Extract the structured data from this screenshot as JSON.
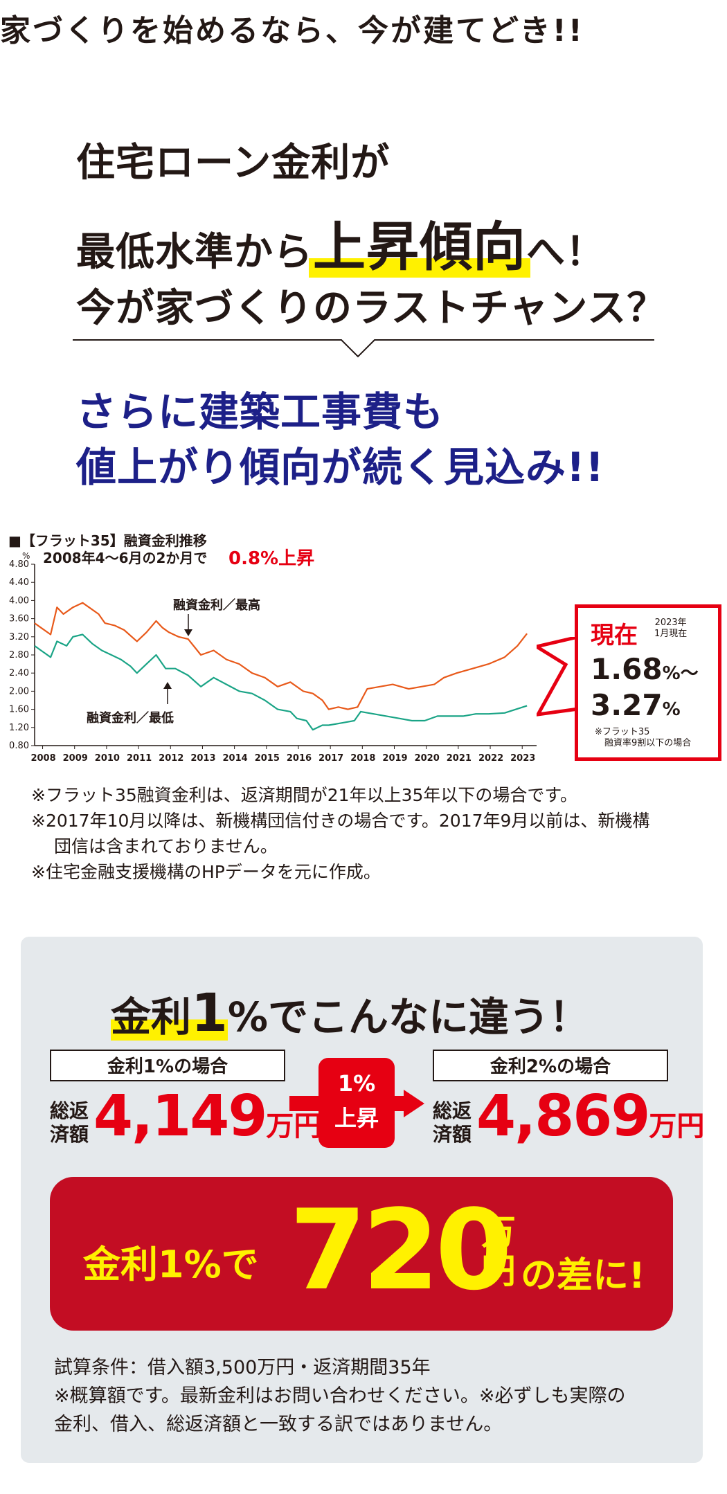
{
  "headline": "家づくりを始めるなら、今が建てどき!!",
  "hero": {
    "line1": "住宅ローン金利が",
    "line2_pre": "最低水準から",
    "line2_highlight": "上昇傾向",
    "line2_post": "へ！",
    "line3": "今が家づくりのラストチャンス？"
  },
  "sub": {
    "line1": "さらに建築工事費も",
    "line2": "値上がり傾向が続く見込み!!"
  },
  "chart_data": {
    "type": "line",
    "title": "■【フラット35】融資金利推移",
    "ylabel": "%",
    "ylim": [
      0.8,
      4.8
    ],
    "yticks": [
      "4.80",
      "4.40",
      "4.00",
      "3.60",
      "3.20",
      "2.80",
      "2.40",
      "2.00",
      "1.60",
      "1.20",
      "0.80"
    ],
    "xticks": [
      "2008",
      "2009",
      "2010",
      "2011",
      "2012",
      "2013",
      "2014",
      "2015",
      "2016",
      "2017",
      "2018",
      "2019",
      "2020",
      "2021",
      "2022",
      "2023"
    ],
    "xlim": [
      2007.8,
      2023.5
    ],
    "grid": false,
    "annotation_note": "2008年4〜6月の2か月で",
    "annotation_rise": "0.8%上昇",
    "label_high": "融資金利／最高",
    "label_low": "融資金利／最低",
    "series": [
      {
        "color": "#e8591a",
        "points": [
          [
            2007.8,
            3.5
          ],
          [
            2008.0,
            3.4
          ],
          [
            2008.3,
            3.25
          ],
          [
            2008.5,
            3.85
          ],
          [
            2008.7,
            3.7
          ],
          [
            2009.0,
            3.85
          ],
          [
            2009.3,
            3.95
          ],
          [
            2009.5,
            3.85
          ],
          [
            2009.8,
            3.7
          ],
          [
            2010.0,
            3.5
          ],
          [
            2010.3,
            3.45
          ],
          [
            2010.6,
            3.35
          ],
          [
            2011.0,
            3.1
          ],
          [
            2011.3,
            3.3
          ],
          [
            2011.6,
            3.55
          ],
          [
            2011.8,
            3.4
          ],
          [
            2012.0,
            3.3
          ],
          [
            2012.3,
            3.2
          ],
          [
            2012.6,
            3.15
          ],
          [
            2013.0,
            2.8
          ],
          [
            2013.4,
            2.9
          ],
          [
            2013.8,
            2.7
          ],
          [
            2014.2,
            2.6
          ],
          [
            2014.6,
            2.4
          ],
          [
            2015.0,
            2.3
          ],
          [
            2015.4,
            2.1
          ],
          [
            2015.8,
            2.2
          ],
          [
            2016.2,
            2.0
          ],
          [
            2016.5,
            1.95
          ],
          [
            2016.8,
            1.8
          ],
          [
            2017.0,
            1.6
          ],
          [
            2017.3,
            1.65
          ],
          [
            2017.6,
            1.6
          ],
          [
            2017.9,
            1.65
          ],
          [
            2018.2,
            2.05
          ],
          [
            2018.6,
            2.1
          ],
          [
            2019.0,
            2.15
          ],
          [
            2019.5,
            2.05
          ],
          [
            2019.9,
            2.1
          ],
          [
            2020.3,
            2.15
          ],
          [
            2020.6,
            2.3
          ],
          [
            2021.0,
            2.4
          ],
          [
            2021.5,
            2.5
          ],
          [
            2022.0,
            2.6
          ],
          [
            2022.5,
            2.75
          ],
          [
            2022.9,
            3.0
          ],
          [
            2023.2,
            3.27
          ]
        ]
      },
      {
        "color": "#1aa486",
        "points": [
          [
            2007.8,
            3.0
          ],
          [
            2008.0,
            2.9
          ],
          [
            2008.3,
            2.75
          ],
          [
            2008.5,
            3.1
          ],
          [
            2008.8,
            3.0
          ],
          [
            2009.0,
            3.2
          ],
          [
            2009.3,
            3.25
          ],
          [
            2009.6,
            3.05
          ],
          [
            2009.9,
            2.9
          ],
          [
            2010.2,
            2.8
          ],
          [
            2010.5,
            2.7
          ],
          [
            2010.8,
            2.55
          ],
          [
            2011.0,
            2.4
          ],
          [
            2011.3,
            2.6
          ],
          [
            2011.6,
            2.8
          ],
          [
            2011.9,
            2.5
          ],
          [
            2012.2,
            2.5
          ],
          [
            2012.6,
            2.35
          ],
          [
            2013.0,
            2.1
          ],
          [
            2013.4,
            2.3
          ],
          [
            2013.8,
            2.15
          ],
          [
            2014.2,
            2.0
          ],
          [
            2014.6,
            1.95
          ],
          [
            2015.0,
            1.8
          ],
          [
            2015.4,
            1.6
          ],
          [
            2015.8,
            1.55
          ],
          [
            2016.0,
            1.4
          ],
          [
            2016.3,
            1.35
          ],
          [
            2016.5,
            1.15
          ],
          [
            2016.8,
            1.25
          ],
          [
            2017.0,
            1.25
          ],
          [
            2017.4,
            1.3
          ],
          [
            2017.8,
            1.35
          ],
          [
            2018.0,
            1.55
          ],
          [
            2018.4,
            1.5
          ],
          [
            2018.8,
            1.45
          ],
          [
            2019.2,
            1.4
          ],
          [
            2019.6,
            1.35
          ],
          [
            2020.0,
            1.35
          ],
          [
            2020.4,
            1.45
          ],
          [
            2020.8,
            1.45
          ],
          [
            2021.2,
            1.45
          ],
          [
            2021.6,
            1.5
          ],
          [
            2022.0,
            1.5
          ],
          [
            2022.5,
            1.52
          ],
          [
            2023.2,
            1.68
          ]
        ]
      }
    ]
  },
  "callout": {
    "now": "現在",
    "note_year": "2023年",
    "note_month": "1月現在",
    "rate_min": "1.68",
    "rate_min_unit": "%〜",
    "rate_max": "3.27",
    "rate_max_unit": "%",
    "foot1": "※フラット35",
    "foot2": "融資率9割以下の場合"
  },
  "notes": {
    "n1": "※フラット35融資金利は、返済期間が21年以上35年以下の場合です。",
    "n2a": "※2017年10月以降は、新機構団信付きの場合です。2017年9月以前は、新機構",
    "n2b": "団信は含まれておりません。",
    "n3": "※住宅金融支援機構のHPデータを元に作成。"
  },
  "compare": {
    "title_pre": "金利",
    "title_num": "1",
    "title_post": "%でこんなに違う！",
    "left_label": "金利1%の場合",
    "right_label": "金利2%の場合",
    "sum_label_1": "総返",
    "sum_label_2": "済額",
    "left_value": "4,149",
    "right_value": "4,869",
    "unit": "万円",
    "arrow_top": "1%",
    "arrow_bottom": "上昇",
    "result_pre": "金利1%で",
    "result_num": "720",
    "result_unit_top": "万",
    "result_unit_bottom": "円",
    "result_post": "の差に!"
  },
  "conditions": {
    "c1": "試算条件：借入額3,500万円・返済期間35年",
    "c2": "※概算額です。最新金利はお問い合わせください。※必ずしも実際の",
    "c3": "金利、借入、総返済額と一致する訳ではありません。"
  },
  "colors": {
    "accent_red": "#e60012",
    "navy": "#1d2088",
    "highlight": "#fff100",
    "high_line": "#e8591a",
    "low_line": "#1aa486",
    "panel": "#e5e9ec"
  }
}
